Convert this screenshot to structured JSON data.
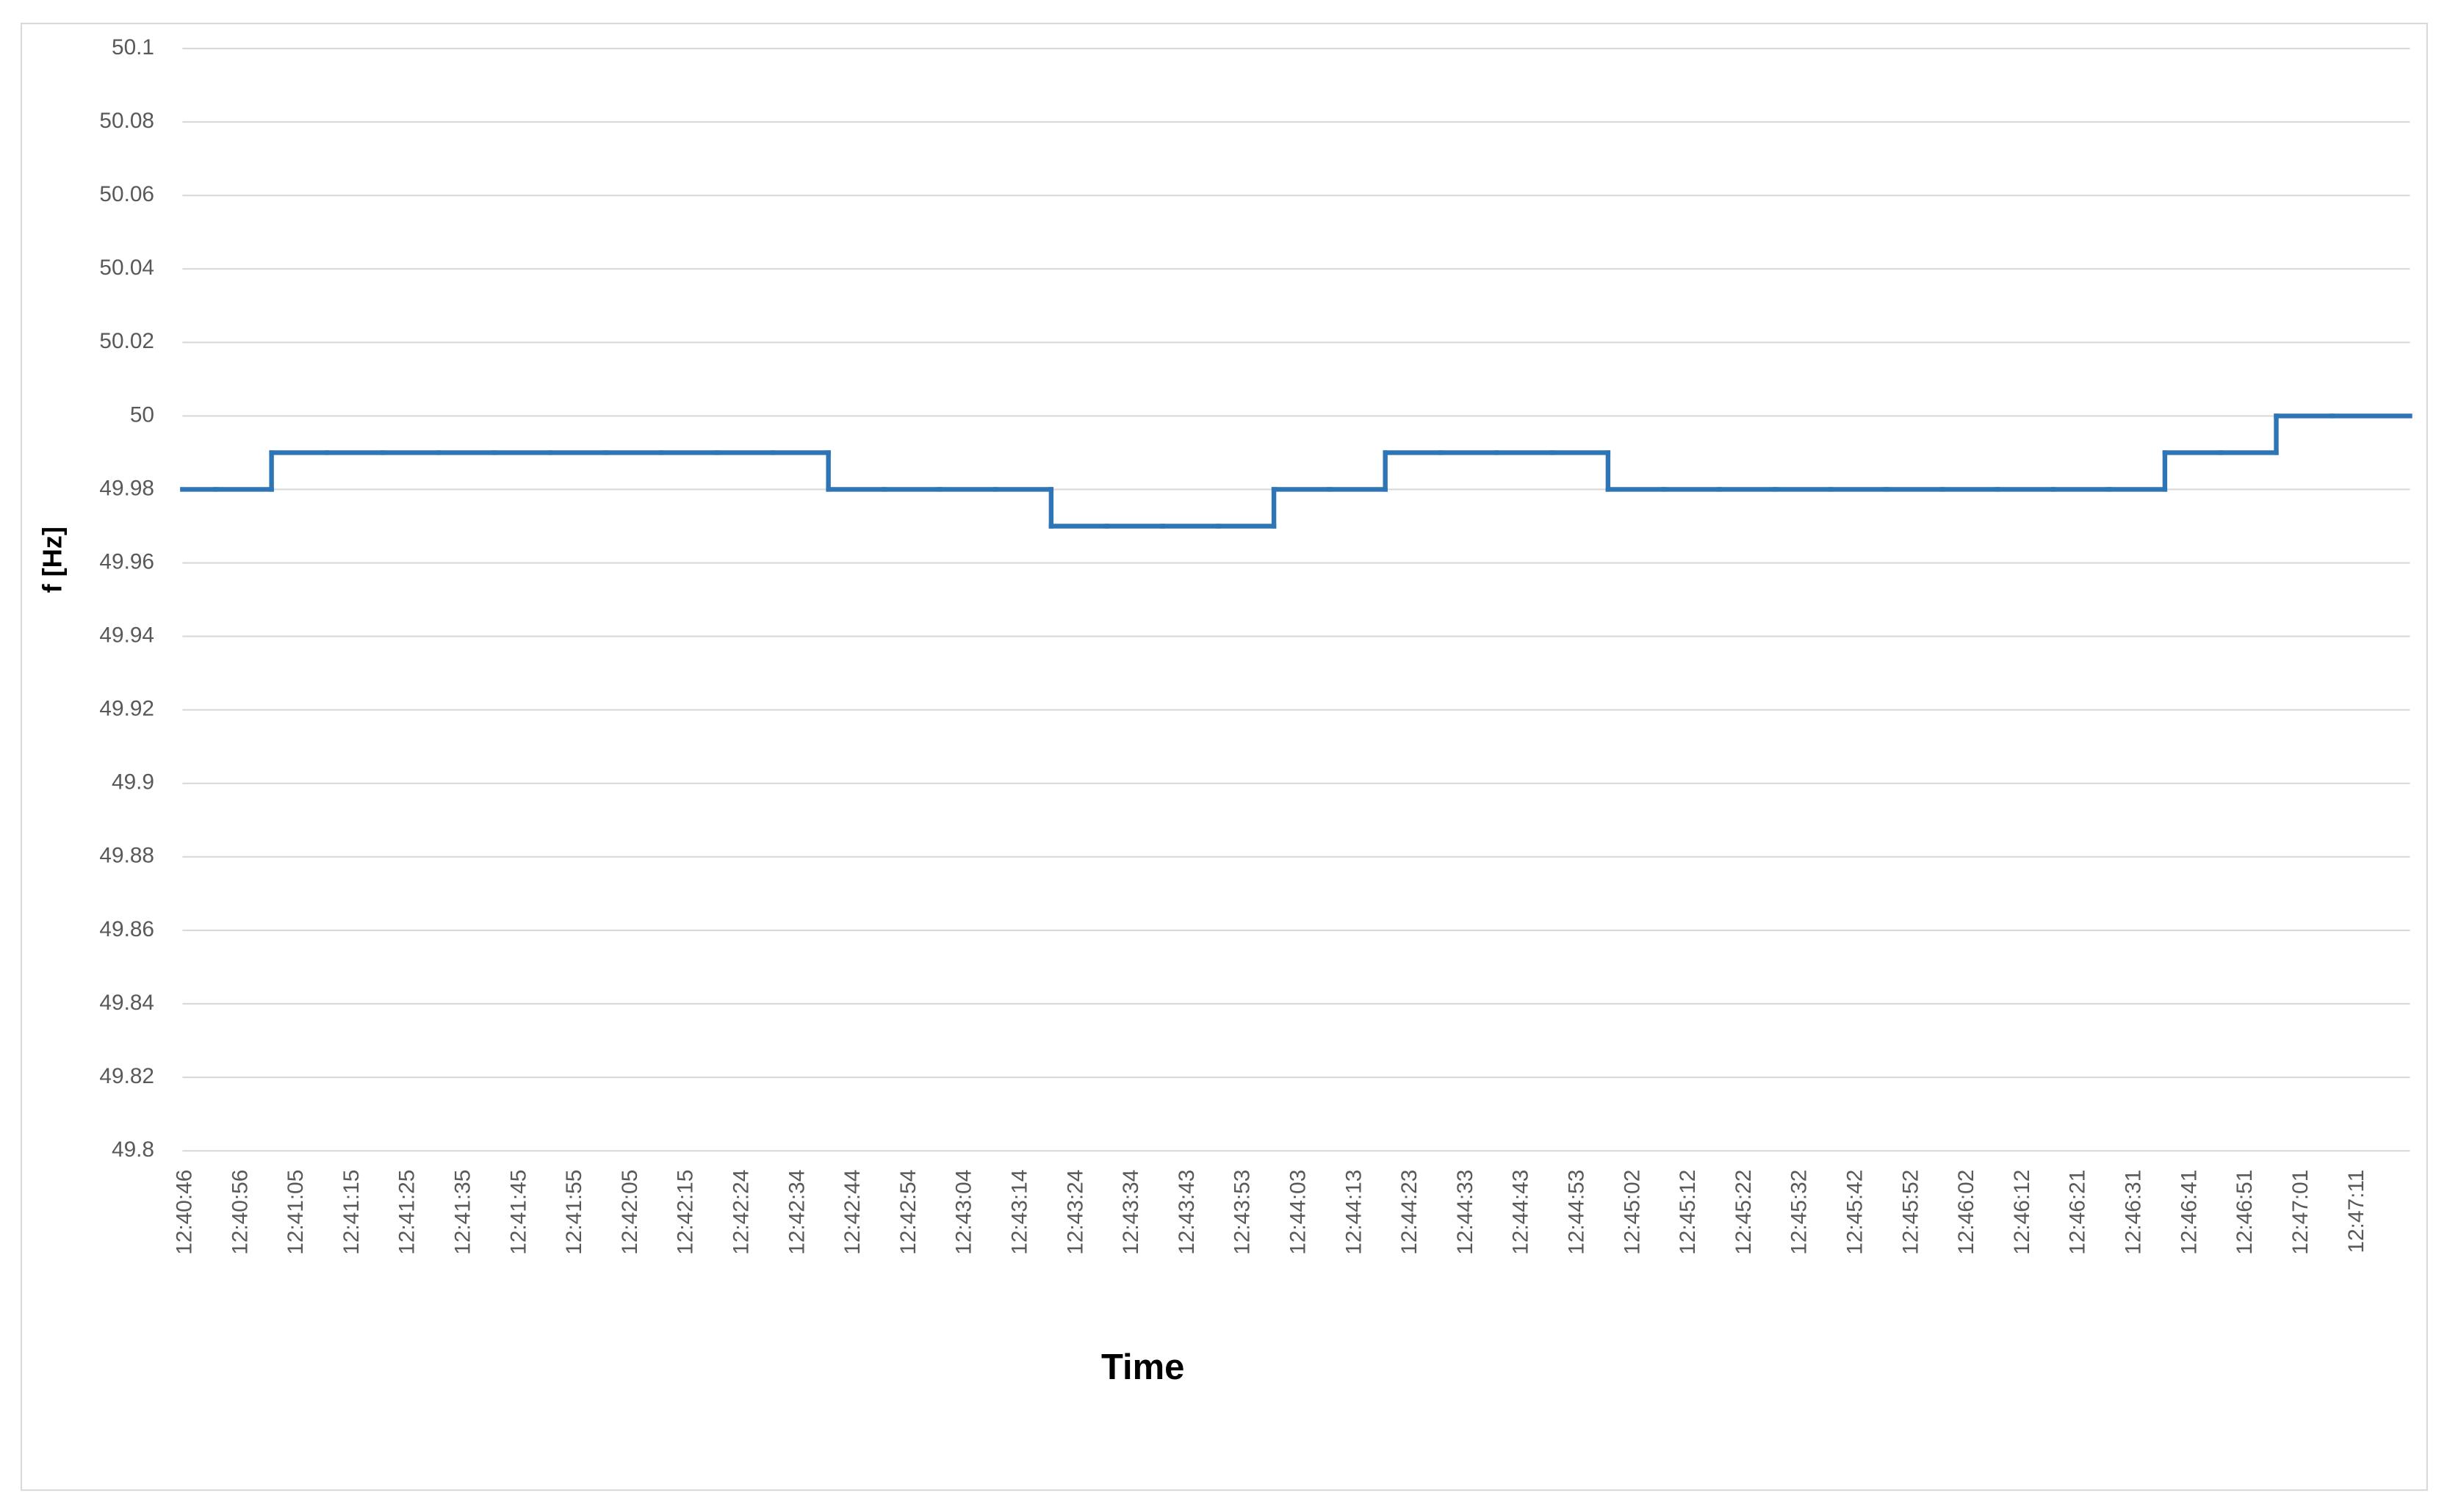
{
  "chart_data": {
    "type": "line",
    "step": true,
    "x_label": "Time",
    "y_label": "f [Hz]",
    "categories": [
      "12:40:46",
      "12:40:56",
      "12:41:05",
      "12:41:15",
      "12:41:25",
      "12:41:35",
      "12:41:45",
      "12:41:55",
      "12:42:05",
      "12:42:15",
      "12:42:24",
      "12:42:34",
      "12:42:44",
      "12:42:54",
      "12:43:04",
      "12:43:14",
      "12:43:24",
      "12:43:34",
      "12:43:43",
      "12:43:53",
      "12:44:03",
      "12:44:13",
      "12:44:23",
      "12:44:33",
      "12:44:43",
      "12:44:53",
      "12:45:02",
      "12:45:12",
      "12:45:22",
      "12:45:32",
      "12:45:42",
      "12:45:52",
      "12:46:02",
      "12:46:12",
      "12:46:21",
      "12:46:31",
      "12:46:41",
      "12:46:51",
      "12:47:01",
      "12:47:11"
    ],
    "values": [
      49.98,
      49.98,
      49.99,
      49.99,
      49.99,
      49.99,
      49.99,
      49.99,
      49.99,
      49.99,
      49.99,
      49.99,
      49.98,
      49.98,
      49.98,
      49.98,
      49.97,
      49.97,
      49.97,
      49.97,
      49.98,
      49.98,
      49.99,
      49.99,
      49.99,
      49.99,
      49.98,
      49.98,
      49.98,
      49.98,
      49.98,
      49.98,
      49.98,
      49.98,
      49.98,
      49.98,
      49.99,
      49.99,
      50,
      50
    ],
    "color": "#2e75b6",
    "ylim": [
      49.8,
      50.1
    ],
    "yticks": [
      49.8,
      49.82,
      49.84,
      49.86,
      49.88,
      49.9,
      49.92,
      49.94,
      49.96,
      49.98,
      50,
      50.02,
      50.04,
      50.06,
      50.08,
      50.1
    ],
    "grid": true
  }
}
